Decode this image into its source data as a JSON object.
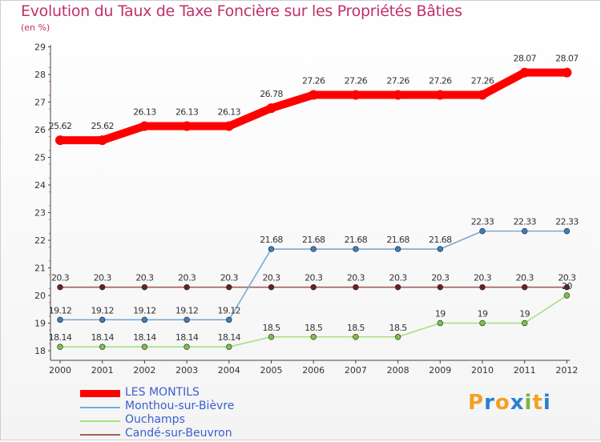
{
  "header": {
    "title": "Evolution du Taux de Taxe Foncière sur les Propriétés Bâties",
    "unit": "(en %)"
  },
  "logo": {
    "text": "Proxiti",
    "letters": [
      "P",
      "r",
      "o",
      "x",
      "i",
      "t",
      "i"
    ],
    "colors": [
      "#f4a024",
      "#2a7fd4",
      "#f4a024",
      "#2a7fd4",
      "#7cb342",
      "#f4a024",
      "#2a7fd4"
    ]
  },
  "chart_data": {
    "type": "line",
    "title": "Evolution du Taux de Taxe Foncière sur les Propriétés Bâties",
    "ylabel": "(en %)",
    "xlabel": "",
    "x": [
      "2000",
      "2001",
      "2002",
      "2003",
      "2004",
      "2005",
      "2006",
      "2007",
      "2008",
      "2009",
      "2010",
      "2011",
      "2012"
    ],
    "yticks": [
      "18",
      "19",
      "20",
      "21",
      "22",
      "23",
      "24",
      "25",
      "26",
      "27",
      "28",
      "29"
    ],
    "ylim": [
      18,
      29
    ],
    "grid": false,
    "legend_position": "bottom-left",
    "series": [
      {
        "name": "LES MONTILS",
        "color": "#ff0000",
        "values": [
          25.62,
          25.62,
          26.13,
          26.13,
          26.13,
          26.78,
          27.26,
          27.26,
          27.26,
          27.26,
          27.26,
          28.07,
          28.07
        ],
        "labels": [
          "25.62",
          "25.62",
          "26.13",
          "26.13",
          "26.13",
          "26.78",
          "27.26",
          "27.26",
          "27.26",
          "27.26",
          "27.26",
          "28.07",
          "28.07"
        ]
      },
      {
        "name": "Monthou-sur-Bièvre",
        "color": "#7aa9d6",
        "marker": "#3a7fc0",
        "values": [
          19.12,
          19.12,
          19.12,
          19.12,
          19.12,
          21.68,
          21.68,
          21.68,
          21.68,
          21.68,
          22.33,
          22.33,
          22.33
        ],
        "labels": [
          "19.12",
          "19.12",
          "19.12",
          "19.12",
          "19.12",
          "21.68",
          "21.68",
          "21.68",
          "21.68",
          "21.68",
          "22.33",
          "22.33",
          "22.33"
        ]
      },
      {
        "name": "Ouchamps",
        "color": "#a8e080",
        "marker": "#7cc04a",
        "values": [
          18.14,
          18.14,
          18.14,
          18.14,
          18.14,
          18.5,
          18.5,
          18.5,
          18.5,
          19,
          19,
          19,
          20
        ],
        "labels": [
          "18.14",
          "18.14",
          "18.14",
          "18.14",
          "18.14",
          "18.5",
          "18.5",
          "18.5",
          "18.5",
          "19",
          "19",
          "19",
          "20"
        ]
      },
      {
        "name": "Candé-sur-Beuvron",
        "color": "#a06060",
        "marker": "#6a2020",
        "values": [
          20.3,
          20.3,
          20.3,
          20.3,
          20.3,
          20.3,
          20.3,
          20.3,
          20.3,
          20.3,
          20.3,
          20.3,
          20.3
        ],
        "labels": [
          "20.3",
          "20.3",
          "20.3",
          "20.3",
          "20.3",
          "20.3",
          "20.3",
          "20.3",
          "20.3",
          "20.3",
          "20.3",
          "20.3",
          "20.3"
        ]
      }
    ]
  }
}
